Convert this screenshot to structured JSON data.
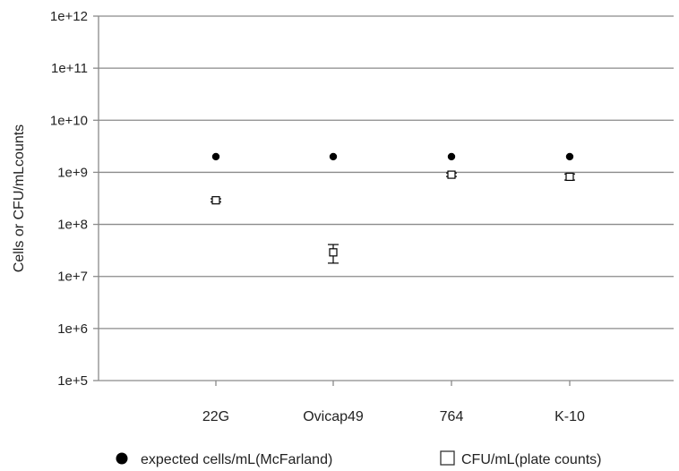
{
  "chart_data": {
    "type": "scatter",
    "title": "",
    "xlabel": "",
    "ylabel": "Cells or CFU/mLcounts",
    "yscale": "log",
    "ylim": [
      100000,
      1000000000000
    ],
    "yticks": [
      "1e+5",
      "1e+6",
      "1e+7",
      "1e+8",
      "1e+9",
      "1e+10",
      "1e+11",
      "1e+12"
    ],
    "categories": [
      "22G",
      "Ovicap49",
      "764",
      "K-10"
    ],
    "grid": "horizontal",
    "legend_position": "bottom",
    "series": [
      {
        "name": "expected cells/mL(McFarland)",
        "marker": "filled-circle",
        "color": "#000000",
        "values": [
          2000000000,
          2000000000,
          2000000000,
          2000000000
        ]
      },
      {
        "name": "CFU/mL(plate counts)",
        "marker": "open-square",
        "color": "#000000",
        "values": [
          290000000,
          29000000,
          900000000,
          820000000
        ],
        "error_low": [
          270000000,
          18000000,
          830000000,
          710000000
        ],
        "error_high": [
          310000000,
          41000000,
          970000000,
          930000000
        ]
      }
    ]
  }
}
